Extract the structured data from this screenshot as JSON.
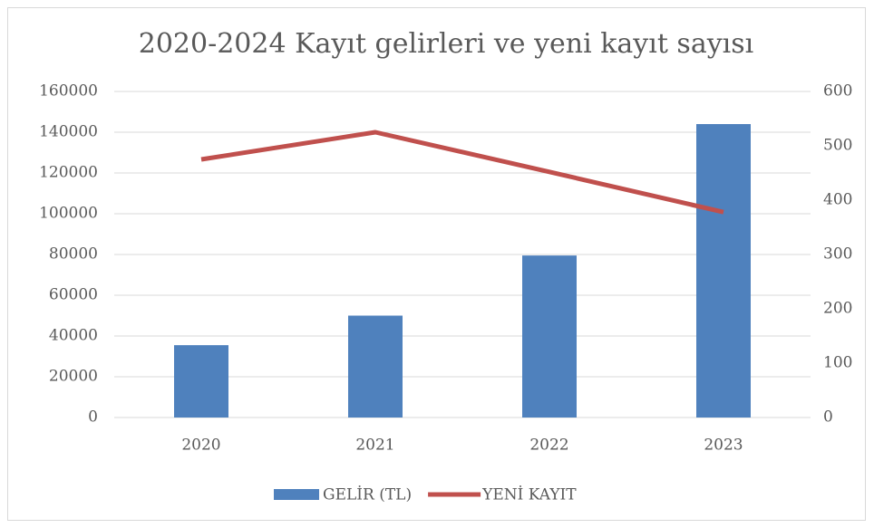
{
  "chart_data": {
    "type": "combo",
    "title": "2020-2024 Kayıt gelirleri ve yeni kayıt sayısı",
    "categories": [
      "2020",
      "2021",
      "2022",
      "2023"
    ],
    "series": [
      {
        "name": "GELİR (TL)",
        "type": "bar",
        "color": "#4f81bd",
        "values": [
          35500,
          50000,
          79500,
          144000
        ]
      },
      {
        "name": "YENİ KAYIT",
        "type": "line",
        "axis": "y2",
        "color": "#c0504d",
        "values": [
          475,
          525,
          452,
          378
        ]
      }
    ],
    "ylim": [
      0,
      160000
    ],
    "yticks": [
      0,
      20000,
      40000,
      60000,
      80000,
      100000,
      120000,
      140000,
      160000
    ],
    "y2lim": [
      0,
      600
    ],
    "y2ticks": [
      0,
      100,
      200,
      300,
      400,
      500,
      600
    ],
    "grid": true,
    "legend": "bottom"
  }
}
